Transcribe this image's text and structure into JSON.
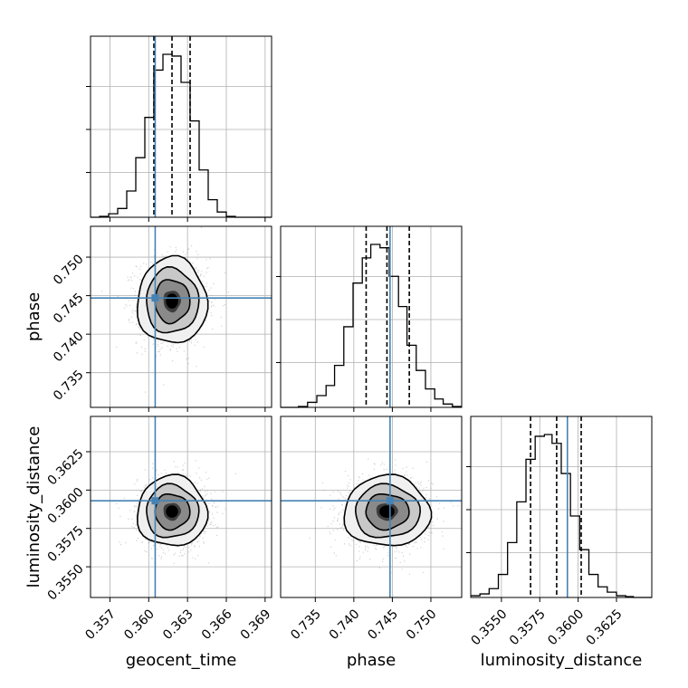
{
  "chart_data": {
    "type": "corner",
    "parameters": [
      "geocent_time",
      "phase",
      "luminosity_distance"
    ],
    "axis_labels": {
      "x": [
        "geocent_time",
        "phase",
        "luminosity_distance"
      ],
      "y": [
        "phase",
        "luminosity_distance"
      ]
    },
    "ranges": {
      "geocent_time": [
        0.3555,
        0.3695
      ],
      "phase": [
        0.7305,
        0.754
      ],
      "luminosity_distance": [
        0.353,
        0.3648
      ]
    },
    "ticks": {
      "geocent_time": [
        0.357,
        0.36,
        0.363,
        0.366,
        0.369
      ],
      "phase": [
        0.735,
        0.74,
        0.745,
        0.75
      ],
      "luminosity_distance": [
        0.355,
        0.3575,
        0.36,
        0.3625
      ]
    },
    "tick_labels": {
      "geocent_time": [
        "0.357",
        "0.360",
        "0.363",
        "0.366",
        "0.369"
      ],
      "phase": [
        "0.735",
        "0.740",
        "0.745",
        "0.750"
      ],
      "luminosity_distance": [
        "0.3550",
        "0.3575",
        "0.3600",
        "0.3625"
      ]
    },
    "truths": {
      "geocent_time": 0.3605,
      "phase": 0.7447,
      "luminosity_distance": 0.3593
    },
    "quantiles": {
      "geocent_time": [
        0.3604,
        0.3618,
        0.3632
      ],
      "phase": [
        0.7416,
        0.7443,
        0.7472
      ],
      "luminosity_distance": [
        0.3569,
        0.3586,
        0.3602
      ]
    },
    "histograms": {
      "geocent_time": {
        "edges": [
          0.3555,
          0.3562,
          0.3569,
          0.3576,
          0.3583,
          0.359,
          0.3597,
          0.3604,
          0.3611,
          0.3618,
          0.3625,
          0.3632,
          0.3639,
          0.3646,
          0.3653,
          0.366,
          0.3667,
          0.3674,
          0.3681,
          0.3688,
          0.3695
        ],
        "counts": [
          0.0,
          0.5,
          2.0,
          5.0,
          15.0,
          34.0,
          57.0,
          84.0,
          93.0,
          92.0,
          77.0,
          55.0,
          27.0,
          10.0,
          3.0,
          0.5,
          0.0,
          0.0,
          0.0,
          0.0
        ]
      },
      "phase": {
        "edges": [
          0.7305,
          0.7317,
          0.7328,
          0.734,
          0.7352,
          0.7364,
          0.7375,
          0.7387,
          0.7399,
          0.7411,
          0.7422,
          0.7434,
          0.7446,
          0.7458,
          0.7469,
          0.7481,
          0.7493,
          0.7505,
          0.7516,
          0.7528,
          0.754
        ],
        "counts": [
          0.0,
          0.0,
          0.5,
          3.0,
          7.0,
          13.0,
          25.0,
          48.0,
          74.0,
          89.0,
          97.0,
          95.0,
          78.0,
          60.0,
          37.0,
          22.0,
          11.0,
          5.0,
          2.0,
          0.5
        ]
      },
      "luminosity_distance": {
        "edges": [
          0.353,
          0.3536,
          0.3542,
          0.3548,
          0.3554,
          0.356,
          0.3566,
          0.3572,
          0.3578,
          0.3583,
          0.3589,
          0.3595,
          0.3601,
          0.3607,
          0.3613,
          0.3619,
          0.3625,
          0.3631,
          0.3636,
          0.3642,
          0.3648
        ],
        "counts": [
          1.0,
          2.0,
          5.0,
          13.0,
          31.0,
          54.0,
          78.0,
          91.0,
          92.0,
          87.0,
          70.0,
          46.0,
          27.0,
          13.0,
          6.0,
          3.0,
          1.0,
          0.5,
          0.0,
          0.0
        ]
      }
    },
    "densities": {
      "phase|geocent_time": {
        "x_mean": 0.3618,
        "x_sd": 0.00135,
        "y_mean": 0.7443,
        "y_sd": 0.0028
      },
      "luminosity_distance|geocent_time": {
        "x_mean": 0.3618,
        "x_sd": 0.00135,
        "y_mean": 0.3586,
        "y_sd": 0.00115
      },
      "luminosity_distance|phase": {
        "x_mean": 0.7443,
        "x_sd": 0.0028,
        "y_mean": 0.3586,
        "y_sd": 0.00115
      }
    },
    "grid": true,
    "colors": {
      "line": "#000000",
      "truth": "#4682b4",
      "scatter": "#9a9a9a",
      "grid": "#b0b0b0"
    }
  }
}
